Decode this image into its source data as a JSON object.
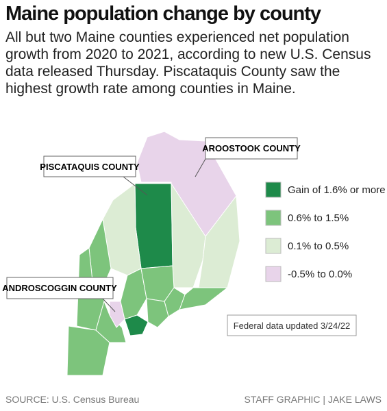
{
  "header": {
    "title": "Maine population change by county",
    "subtitle": "All but two Maine counties experienced net population growth from 2020 to 2021, according to new U.S. Census data released Thursday. Piscataquis County saw the highest growth rate among counties in Maine."
  },
  "callouts": [
    "AROOSTOOK COUNTY",
    "PISCATAQUIS COUNTY",
    "ANDROSCOGGIN COUNTY"
  ],
  "legend": [
    {
      "label": "Gain of 1.6% or more",
      "color": "#1e8a4a"
    },
    {
      "label": "0.6% to 1.5%",
      "color": "#7dc47c"
    },
    {
      "label": "0.1% to 0.5%",
      "color": "#dcecd4"
    },
    {
      "label": "-0.5% to 0.0%",
      "color": "#e8d4ea"
    }
  ],
  "note": "Federal data updated 3/24/22",
  "footer": {
    "source": "SOURCE: U.S. Census Bureau",
    "credit": "STAFF GRAPHIC | JAKE LAWS"
  }
}
